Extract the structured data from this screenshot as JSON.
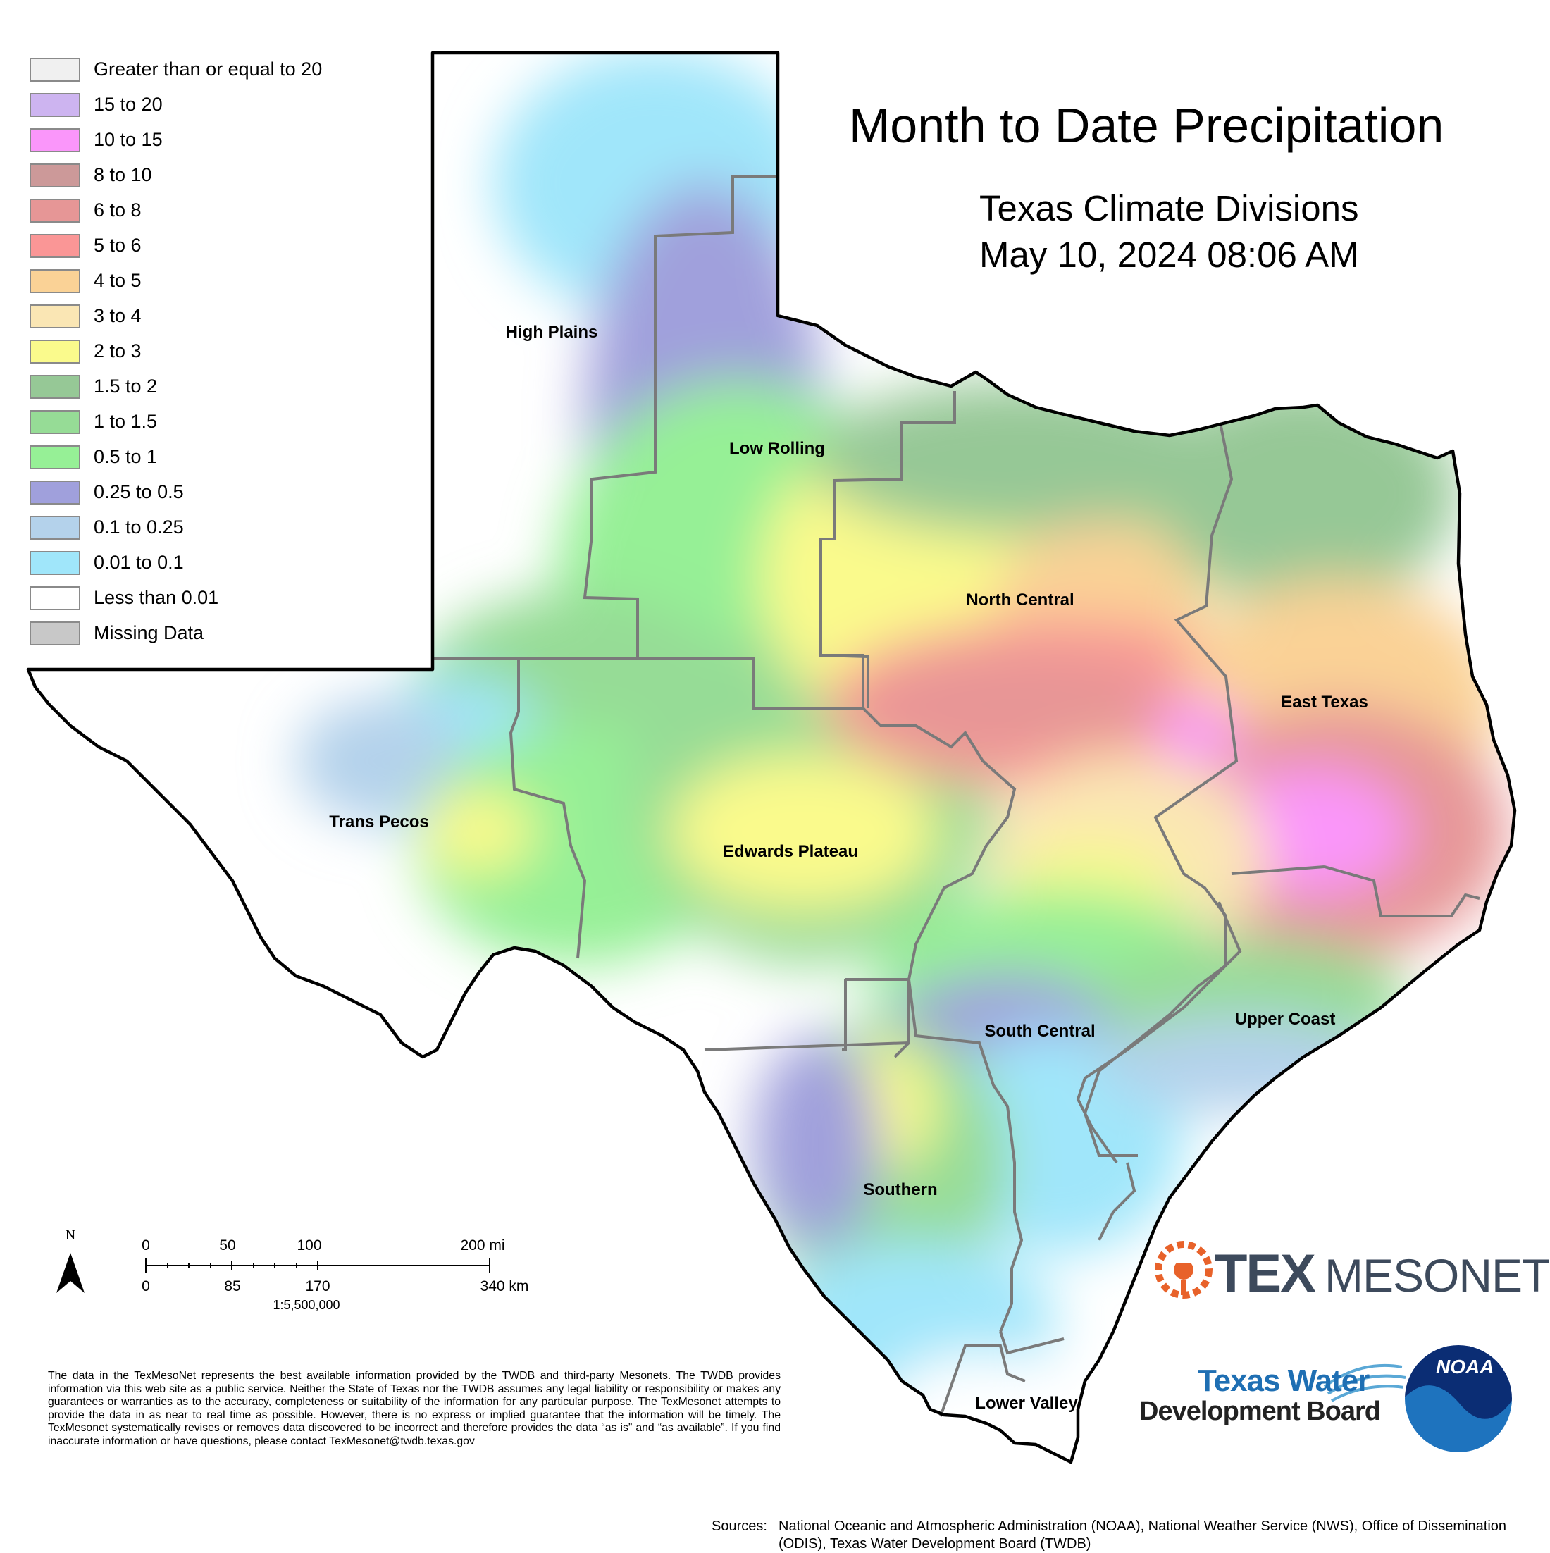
{
  "title": "Month to Date Precipitation",
  "subtitle": "Texas Climate Divisions",
  "date": "May 10, 2024 08:06 AM",
  "legend": [
    {
      "label": "Greater than or equal to 20",
      "color": "#f0f0f0"
    },
    {
      "label": "15 to 20",
      "color": "#cdb4f0"
    },
    {
      "label": "10 to 15",
      "color": "#fa96fa"
    },
    {
      "label": "8 to 10",
      "color": "#cc9999"
    },
    {
      "label": "6 to 8",
      "color": "#e69696"
    },
    {
      "label": "5 to 6",
      "color": "#fa9696"
    },
    {
      "label": "4 to 5",
      "color": "#fad296"
    },
    {
      "label": "3 to 4",
      "color": "#fae6b4"
    },
    {
      "label": "2 to 3",
      "color": "#fafa8c"
    },
    {
      "label": "1.5 to 2",
      "color": "#96c896"
    },
    {
      "label": "1 to 1.5",
      "color": "#96dc96"
    },
    {
      "label": "0.5 to 1",
      "color": "#96f096"
    },
    {
      "label": "0.25 to 0.5",
      "color": "#a0a0dc"
    },
    {
      "label": "0.1 to 0.25",
      "color": "#b4d2eb"
    },
    {
      "label": "0.01 to 0.1",
      "color": "#a0e6fa"
    },
    {
      "label": "Less than 0.01",
      "color": "#ffffff"
    },
    {
      "label": "Missing Data",
      "color": "#c8c8c8"
    }
  ],
  "regions": {
    "high_plains": "High Plains",
    "low_rolling": "Low Rolling",
    "north_central": "North Central",
    "east_texas": "East Texas",
    "trans_pecos": "Trans Pecos",
    "edwards_plateau": "Edwards Plateau",
    "south_central": "South Central",
    "upper_coast": "Upper Coast",
    "southern": "Southern",
    "lower_valley": "Lower Valley"
  },
  "scale_bar": {
    "north": "N",
    "miles": [
      "0",
      "50",
      "100",
      "200 mi"
    ],
    "km": [
      "0",
      "85",
      "170",
      "340 km"
    ],
    "ratio": "1:5,500,000"
  },
  "disclaimer": "The data in the TexMesoNet represents the best available information provided by the TWDB and third-party Mesonets. The TWDB provides information via this web site as a public service. Neither the State of Texas nor the TWDB assumes any legal liability or responsibility or makes any guarantees or warranties as to the accuracy, completeness or suitability of the information for any particular purpose. The TexMesonet attempts to provide the data in as near to real time as possible. However, there is no express or implied guarantee that the information will be timely. The TexMesonet systematically revises or removes data discovered to be incorrect and therefore provides the data “as is” and “as available”. If you find inaccurate information or have questions, please contact TexMesonet@twdb.texas.gov",
  "sources_label": "Sources:",
  "sources_text": "National Oceanic and Atmospheric Administration (NOAA), National Weather Service (NWS), Office of Dissemination (ODIS), Texas Water Development Board (TWDB)",
  "logos": {
    "texmesonet_tex": "TEX",
    "texmesonet_rest": "MESONET",
    "twdb_line1": "Texas Water",
    "twdb_line2": "Development Board",
    "noaa": "NOAA"
  }
}
